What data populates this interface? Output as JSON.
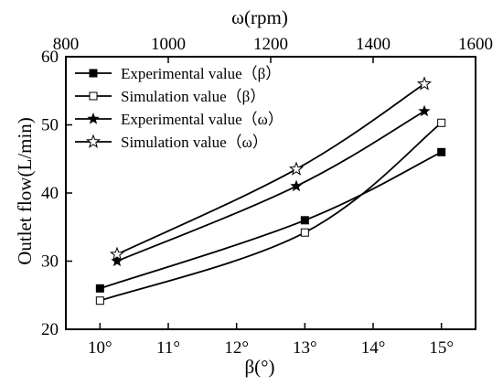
{
  "chart_data": {
    "type": "line",
    "title": "",
    "xlabel": "β(°)",
    "x2label": "ω(rpm)",
    "ylabel": "Outlet flow(L/min)",
    "xlim": [
      9.5,
      15.5
    ],
    "x2lim": [
      800,
      1600
    ],
    "ylim": [
      20,
      60
    ],
    "xticks": [
      "10°",
      "11°",
      "12°",
      "13°",
      "14°",
      "15°"
    ],
    "xtick_values": [
      10,
      11,
      12,
      13,
      14,
      15
    ],
    "x2ticks": [
      "800",
      "1000",
      "1200",
      "1400",
      "1600"
    ],
    "x2tick_values": [
      800,
      1000,
      1200,
      1400,
      1600
    ],
    "yticks": [
      "20",
      "30",
      "40",
      "50",
      "60"
    ],
    "ytick_values": [
      20,
      30,
      40,
      50,
      60
    ],
    "legend_position": "top-left",
    "grid": false,
    "series": [
      {
        "name": "Experimental value（β）",
        "axis": "bottom",
        "marker": "filled-square",
        "x": [
          10,
          13,
          15
        ],
        "y": [
          26.0,
          36.0,
          46.0
        ]
      },
      {
        "name": "Simulation value（β）",
        "axis": "bottom",
        "marker": "open-square",
        "x": [
          10,
          13,
          15
        ],
        "y": [
          24.2,
          34.2,
          50.3
        ]
      },
      {
        "name": "Experimental value（ω）",
        "axis": "top",
        "marker": "filled-star",
        "x": [
          900,
          1250,
          1500
        ],
        "y": [
          30.0,
          41.0,
          52.0
        ]
      },
      {
        "name": "Simulation value（ω）",
        "axis": "top",
        "marker": "open-star",
        "x": [
          900,
          1250,
          1500
        ],
        "y": [
          31.0,
          43.5,
          56.0
        ]
      }
    ]
  }
}
